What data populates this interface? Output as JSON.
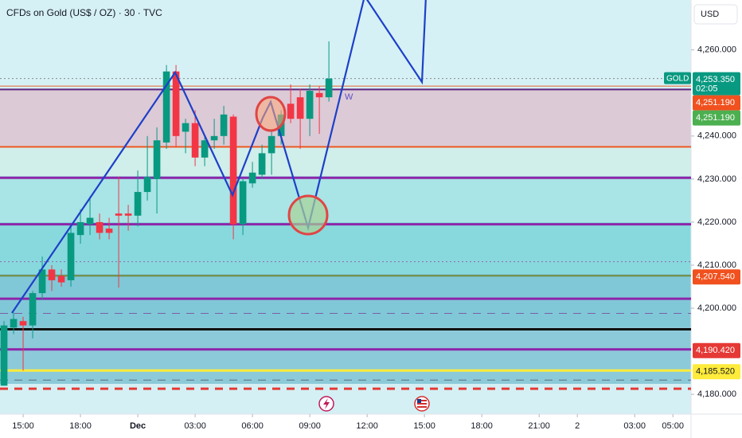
{
  "chart_data": {
    "type": "candlestick",
    "title": "CFDs on Gold (US$ / OZ) · 30 · TVC",
    "currency": "USD",
    "symbol": "GOLD",
    "countdown": "02:05",
    "annotation": "W",
    "up_color": "#089981",
    "down_color": "#f23645",
    "x": [
      0,
      1,
      2,
      3,
      4,
      5,
      6,
      7,
      8,
      9,
      10,
      11,
      12,
      13,
      14,
      15,
      16,
      17,
      18,
      19,
      20,
      21,
      22,
      23,
      24,
      25,
      26,
      27,
      28,
      29,
      30,
      31,
      32,
      33,
      34
    ],
    "open": [
      4182,
      4195.5,
      4197,
      4196,
      4203.5,
      4209,
      4207.5,
      4206.5,
      4217,
      4219.5,
      4220,
      4218.5,
      4222,
      4222,
      4221.5,
      4227,
      4230,
      4238.5,
      4255,
      4241,
      4243,
      4235,
      4239,
      4240,
      4244.5,
      4219.5,
      4229,
      4231,
      4236,
      4240,
      4247.5,
      4249,
      4244,
      4250,
      4249
    ],
    "high": [
      4197,
      4199,
      4198,
      4204,
      4212,
      4210,
      4209,
      4219,
      4223,
      4226,
      4222,
      4221,
      4230.5,
      4224,
      4232,
      4240,
      4242,
      4256.5,
      4256.5,
      4244,
      4246,
      4240,
      4244,
      4247,
      4245,
      4230,
      4234,
      4238,
      4241,
      4246,
      4252,
      4251,
      4252,
      4251.5,
      4262
    ],
    "low": [
      4182,
      4194,
      4185.5,
      4193,
      4202,
      4204,
      4205,
      4205,
      4215,
      4217,
      4216,
      4216,
      4204.8,
      4218,
      4219,
      4225,
      4222,
      4237,
      4237.5,
      4236,
      4233,
      4233,
      4237,
      4238,
      4216,
      4217,
      4228,
      4230,
      4231,
      4238,
      4243,
      4237,
      4240,
      4240.5,
      4248
    ],
    "close": [
      4196,
      4197.5,
      4196,
      4203.5,
      4209,
      4206.5,
      4206,
      4217.5,
      4220,
      4221,
      4217.5,
      4217.5,
      4221.5,
      4221.5,
      4227,
      4230.5,
      4239,
      4255,
      4240,
      4243,
      4235,
      4239,
      4240,
      4245,
      4219.5,
      4229.5,
      4231.5,
      4236,
      4240,
      4245,
      4244,
      4244,
      4250.5,
      4249,
      4253.35
    ],
    "xlim": [
      -0.42,
      71.9
    ],
    "xticks": [
      {
        "value": 2,
        "label": "15:00"
      },
      {
        "value": 8,
        "label": "18:00"
      },
      {
        "value": 14,
        "label": "Dec"
      },
      {
        "value": 20,
        "label": "03:00"
      },
      {
        "value": 26,
        "label": "06:00"
      },
      {
        "value": 32,
        "label": "09:00"
      },
      {
        "value": 38,
        "label": "12:00"
      },
      {
        "value": 44,
        "label": "15:00"
      },
      {
        "value": 50,
        "label": "18:00"
      },
      {
        "value": 56,
        "label": "21:00"
      },
      {
        "value": 60,
        "label": "2"
      },
      {
        "value": 66,
        "label": "03:00"
      },
      {
        "value": 70,
        "label": "05:00"
      }
    ],
    "ylim": [
      4175.4,
      4271.6
    ],
    "yticks": [
      {
        "value": 4260,
        "label": "4,260.000"
      },
      {
        "value": 4240,
        "label": "4,240.000"
      },
      {
        "value": 4230,
        "label": "4,230.000"
      },
      {
        "value": 4220,
        "label": "4,220.000"
      },
      {
        "value": 4210,
        "label": "4,210.000"
      },
      {
        "value": 4200,
        "label": "4,200.000"
      },
      {
        "value": 4180,
        "label": "4,180.000"
      }
    ],
    "levels": [
      {
        "value": 4253.35,
        "color": "#8a8a8a",
        "width": 1,
        "style": "dotted"
      },
      {
        "value": 4251.6,
        "color": "#e8622c",
        "width": 1,
        "style": "solid"
      },
      {
        "value": 4250.8,
        "color": "#5e2a84",
        "width": 2,
        "style": "solid"
      },
      {
        "value": 4237.5,
        "color": "#f0511e",
        "width": 2,
        "style": "solid"
      },
      {
        "value": 4230.3,
        "color": "#8e24aa",
        "width": 3,
        "style": "solid"
      },
      {
        "value": 4219.5,
        "color": "#8e24aa",
        "width": 3,
        "style": "solid"
      },
      {
        "value": 4210.8,
        "color": "#8e6bb0",
        "width": 1,
        "style": "dotted"
      },
      {
        "value": 4207.54,
        "color": "#6f8a3a",
        "width": 2,
        "style": "solid"
      },
      {
        "value": 4202.2,
        "color": "#8e24aa",
        "width": 3,
        "style": "solid"
      },
      {
        "value": 4198.8,
        "color": "#7b5ea7",
        "width": 1,
        "style": "dashed"
      },
      {
        "value": 4195.1,
        "color": "#111111",
        "width": 3,
        "style": "solid"
      },
      {
        "value": 4190.42,
        "color": "#8e24aa",
        "width": 3,
        "style": "solid"
      },
      {
        "value": 4185.52,
        "color": "#ffeb3b",
        "width": 3,
        "style": "solid"
      },
      {
        "value": 4183.3,
        "color": "#5a6b78",
        "width": 1,
        "style": "dashed"
      },
      {
        "value": 4181.3,
        "color": "#e53935",
        "width": 3,
        "style": "dashed"
      }
    ],
    "price_tags": [
      {
        "value": 4253.35,
        "label": "4,253.350",
        "color": "#089981"
      },
      {
        "value": 4251.19,
        "label": "4,251.190",
        "color": "#f0511e"
      },
      {
        "value": 4251.19,
        "label": "4,251.190",
        "color": "#4caf50"
      },
      {
        "value": 4207.54,
        "label": "4,207.540",
        "color": "#f0511e"
      },
      {
        "value": 4190.42,
        "label": "4,190.420",
        "color": "#e53935"
      },
      {
        "value": 4185.52,
        "label": "4,185.520",
        "color": "#ffeb3b"
      }
    ]
  }
}
